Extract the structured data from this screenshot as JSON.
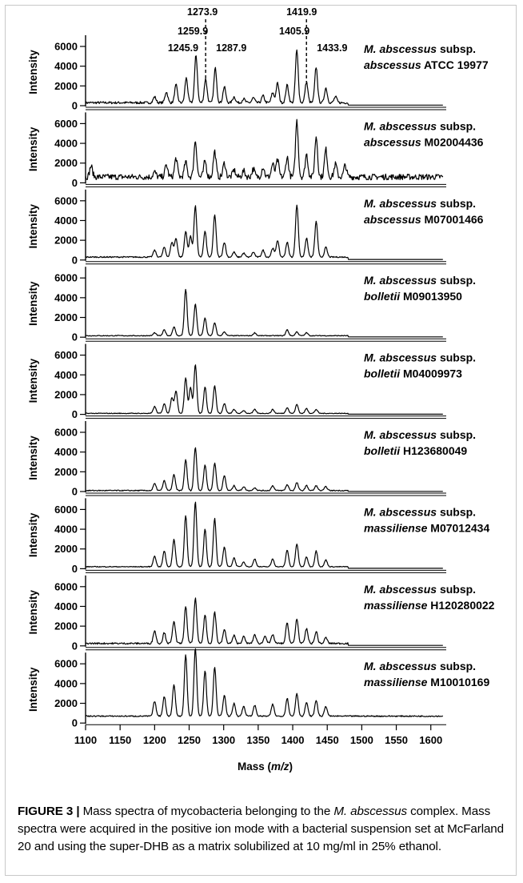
{
  "chart_data": {
    "type": "line",
    "xlabel_pre": "Mass (",
    "xlabel_it": "m/z",
    "xlabel_post": ")",
    "ylabel": "Intensity",
    "xlim": [
      1100,
      1620
    ],
    "x_ticks": [
      1100,
      1150,
      1200,
      1250,
      1300,
      1350,
      1400,
      1450,
      1500,
      1550,
      1600
    ],
    "ylim": [
      0,
      7000
    ],
    "y_ticks": [
      0,
      2000,
      4000,
      6000
    ],
    "peak_labels": [
      {
        "text": "1245.9",
        "x": 1245.9,
        "intensity": 2500
      },
      {
        "text": "1259.9",
        "x": 1259.9,
        "intensity": 4800
      },
      {
        "text": "1273.9",
        "x": 1273.9,
        "intensity": 2400
      },
      {
        "text": "1287.9",
        "x": 1287.9,
        "intensity": 3500
      },
      {
        "text": "1405.9",
        "x": 1405.9,
        "intensity": 5300
      },
      {
        "text": "1419.9",
        "x": 1419.9,
        "intensity": 2100
      },
      {
        "text": "1433.9",
        "x": 1433.9,
        "intensity": 3600
      }
    ],
    "series": [
      {
        "species": "M. abscessus",
        "subsp": "abscessus",
        "strain": "ATCC 19977",
        "baseline": 300,
        "noise": 120,
        "peaks": [
          [
            1200,
            600
          ],
          [
            1217,
            1100
          ],
          [
            1231,
            1800
          ],
          [
            1245.9,
            2500
          ],
          [
            1259.9,
            4800
          ],
          [
            1273.9,
            2400
          ],
          [
            1287.9,
            3500
          ],
          [
            1301,
            1600
          ],
          [
            1315,
            600
          ],
          [
            1329,
            400
          ],
          [
            1343,
            500
          ],
          [
            1357,
            700
          ],
          [
            1371,
            1000
          ],
          [
            1378,
            2000
          ],
          [
            1392,
            1800
          ],
          [
            1405.9,
            5300
          ],
          [
            1419.9,
            2100
          ],
          [
            1433.9,
            3600
          ],
          [
            1448,
            1500
          ],
          [
            1462,
            600
          ]
        ]
      },
      {
        "species": "M. abscessus",
        "subsp": "abscessus",
        "strain": "M02004436",
        "baseline": 600,
        "noise": 300,
        "peaks": [
          [
            1108,
            1100
          ],
          [
            1200,
            500
          ],
          [
            1217,
            1200
          ],
          [
            1231,
            1900
          ],
          [
            1245,
            1500
          ],
          [
            1259,
            3700
          ],
          [
            1273,
            1600
          ],
          [
            1287,
            2600
          ],
          [
            1301,
            1400
          ],
          [
            1315,
            700
          ],
          [
            1329,
            600
          ],
          [
            1343,
            800
          ],
          [
            1357,
            1000
          ],
          [
            1371,
            1300
          ],
          [
            1378,
            1700
          ],
          [
            1392,
            2000
          ],
          [
            1406,
            5700
          ],
          [
            1420,
            2300
          ],
          [
            1434,
            4100
          ],
          [
            1448,
            2800
          ],
          [
            1462,
            1300
          ],
          [
            1476,
            1200
          ]
        ]
      },
      {
        "species": "M. abscessus",
        "subsp": "abscessus",
        "strain": "M07001466",
        "baseline": 300,
        "noise": 60,
        "peaks": [
          [
            1200,
            700
          ],
          [
            1214,
            1000
          ],
          [
            1225,
            1500
          ],
          [
            1231,
            1900
          ],
          [
            1245,
            2600
          ],
          [
            1252,
            2100
          ],
          [
            1259,
            5200
          ],
          [
            1273,
            2600
          ],
          [
            1287,
            4300
          ],
          [
            1301,
            1500
          ],
          [
            1315,
            500
          ],
          [
            1329,
            400
          ],
          [
            1343,
            500
          ],
          [
            1357,
            700
          ],
          [
            1371,
            900
          ],
          [
            1378,
            1700
          ],
          [
            1392,
            1500
          ],
          [
            1406,
            5300
          ],
          [
            1420,
            1900
          ],
          [
            1434,
            3600
          ],
          [
            1448,
            1000
          ]
        ]
      },
      {
        "species": "M. abscessus",
        "subsp": "bolletii",
        "strain": "M09013950",
        "baseline": 150,
        "noise": 40,
        "peaks": [
          [
            1200,
            300
          ],
          [
            1214,
            600
          ],
          [
            1228,
            900
          ],
          [
            1245,
            4700
          ],
          [
            1259,
            3200
          ],
          [
            1273,
            1800
          ],
          [
            1287,
            1300
          ],
          [
            1301,
            400
          ],
          [
            1345,
            300
          ],
          [
            1392,
            600
          ],
          [
            1406,
            400
          ],
          [
            1420,
            300
          ]
        ]
      },
      {
        "species": "M. abscessus",
        "subsp": "bolletii",
        "strain": "M04009973",
        "baseline": 100,
        "noise": 40,
        "peaks": [
          [
            1200,
            700
          ],
          [
            1214,
            1000
          ],
          [
            1225,
            1600
          ],
          [
            1231,
            2300
          ],
          [
            1245,
            3600
          ],
          [
            1252,
            2600
          ],
          [
            1259,
            5000
          ],
          [
            1273,
            2700
          ],
          [
            1287,
            2800
          ],
          [
            1301,
            1000
          ],
          [
            1315,
            400
          ],
          [
            1329,
            300
          ],
          [
            1345,
            400
          ],
          [
            1371,
            400
          ],
          [
            1392,
            600
          ],
          [
            1406,
            900
          ],
          [
            1420,
            500
          ],
          [
            1434,
            400
          ]
        ]
      },
      {
        "species": "M. abscessus",
        "subsp": "bolletii",
        "strain": "H123680049",
        "baseline": 100,
        "noise": 50,
        "peaks": [
          [
            1200,
            700
          ],
          [
            1214,
            1000
          ],
          [
            1228,
            1600
          ],
          [
            1245,
            3100
          ],
          [
            1259,
            4400
          ],
          [
            1273,
            2600
          ],
          [
            1287,
            2800
          ],
          [
            1301,
            1500
          ],
          [
            1315,
            500
          ],
          [
            1329,
            400
          ],
          [
            1345,
            300
          ],
          [
            1371,
            500
          ],
          [
            1392,
            600
          ],
          [
            1406,
            800
          ],
          [
            1420,
            500
          ],
          [
            1434,
            500
          ],
          [
            1448,
            400
          ]
        ]
      },
      {
        "species": "M. abscessus",
        "subsp": "massiliense",
        "strain": "M07012434",
        "baseline": 200,
        "noise": 40,
        "peaks": [
          [
            1200,
            1100
          ],
          [
            1214,
            1600
          ],
          [
            1228,
            2800
          ],
          [
            1245,
            5200
          ],
          [
            1259,
            6600
          ],
          [
            1273,
            3800
          ],
          [
            1287,
            4900
          ],
          [
            1301,
            2000
          ],
          [
            1315,
            900
          ],
          [
            1329,
            500
          ],
          [
            1345,
            800
          ],
          [
            1371,
            800
          ],
          [
            1392,
            1700
          ],
          [
            1406,
            2300
          ],
          [
            1420,
            1000
          ],
          [
            1434,
            1600
          ],
          [
            1448,
            700
          ]
        ]
      },
      {
        "species": "M. abscessus",
        "subsp": "massiliense",
        "strain": "H120280022",
        "baseline": 250,
        "noise": 80,
        "peaks": [
          [
            1200,
            1300
          ],
          [
            1214,
            1100
          ],
          [
            1228,
            2300
          ],
          [
            1245,
            3700
          ],
          [
            1259,
            4600
          ],
          [
            1273,
            2900
          ],
          [
            1287,
            3200
          ],
          [
            1301,
            1400
          ],
          [
            1315,
            800
          ],
          [
            1329,
            700
          ],
          [
            1345,
            900
          ],
          [
            1360,
            800
          ],
          [
            1371,
            900
          ],
          [
            1392,
            2100
          ],
          [
            1406,
            2500
          ],
          [
            1420,
            1500
          ],
          [
            1434,
            1200
          ],
          [
            1448,
            600
          ]
        ]
      },
      {
        "species": "M. abscessus",
        "subsp": "massiliense",
        "strain": "M10010169",
        "baseline": 700,
        "noise": 60,
        "peaks": [
          [
            1200,
            1500
          ],
          [
            1214,
            2000
          ],
          [
            1228,
            3200
          ],
          [
            1245,
            6200
          ],
          [
            1259,
            6900
          ],
          [
            1273,
            4600
          ],
          [
            1287,
            5000
          ],
          [
            1301,
            2100
          ],
          [
            1315,
            1300
          ],
          [
            1329,
            1000
          ],
          [
            1345,
            1100
          ],
          [
            1371,
            1200
          ],
          [
            1392,
            1800
          ],
          [
            1406,
            2300
          ],
          [
            1420,
            1400
          ],
          [
            1434,
            1600
          ],
          [
            1448,
            1000
          ]
        ]
      }
    ]
  },
  "caption": {
    "label": "FIGURE 3 |",
    "t1": " Mass spectra of mycobacteria belonging to the ",
    "it1": "M. abscessus",
    "t2": " complex. Mass spectra were acquired in the positive ion mode with a bacterial suspension set at McFarland 20 and using the super-DHB as a matrix solubilized at 10 mg/ml in 25% ethanol."
  }
}
